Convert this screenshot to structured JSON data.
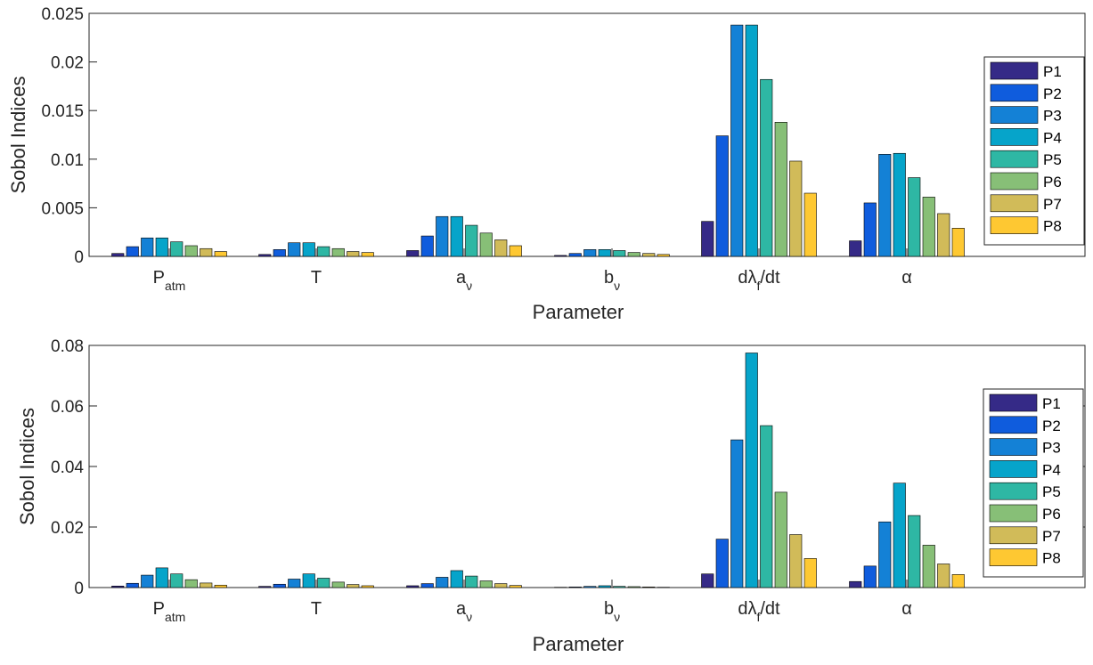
{
  "series_colors": [
    "#352a87",
    "#0f5cdd",
    "#1481d6",
    "#06a4ca",
    "#2eb7a4",
    "#87bf77",
    "#d1bb59",
    "#fec832",
    "#f9fb0e"
  ],
  "chart_data": [
    {
      "type": "bar",
      "title": "",
      "xlabel": "Parameter",
      "ylabel": "Sobol Indices",
      "ylim": [
        0,
        0.025
      ],
      "yticks": [
        0,
        0.005,
        0.01,
        0.015,
        0.02,
        0.025
      ],
      "ytick_labels": [
        "0",
        "0.005",
        "0.01",
        "0.015",
        "0.02",
        "0.025"
      ],
      "categories": [
        {
          "base": "P",
          "sub": "atm",
          "full": "P_atm"
        },
        {
          "base": "T",
          "sub": "",
          "full": "T"
        },
        {
          "base": "a",
          "sub": "ν",
          "full": "a_ν"
        },
        {
          "base": "b",
          "sub": "ν",
          "full": "b_ν"
        },
        {
          "base": "dλ",
          "sub": "f",
          "tail": "/dt",
          "full": "dλ_f/dt"
        },
        {
          "base": "α",
          "sub": "",
          "full": "α"
        }
      ],
      "legend": "right",
      "series": [
        {
          "name": "P1",
          "values": [
            0.0003,
            0.0002,
            0.0006,
            0.0001,
            0.0036,
            0.0016
          ]
        },
        {
          "name": "P2",
          "values": [
            0.001,
            0.0007,
            0.0021,
            0.0003,
            0.0124,
            0.0055
          ]
        },
        {
          "name": "P3",
          "values": [
            0.0019,
            0.0014,
            0.0041,
            0.0007,
            0.0238,
            0.0105
          ]
        },
        {
          "name": "P4",
          "values": [
            0.0019,
            0.0014,
            0.0041,
            0.0007,
            0.0238,
            0.0106
          ]
        },
        {
          "name": "P5",
          "values": [
            0.0015,
            0.001,
            0.0032,
            0.0006,
            0.0182,
            0.0081
          ]
        },
        {
          "name": "P6",
          "values": [
            0.0011,
            0.0008,
            0.0024,
            0.0004,
            0.0138,
            0.0061
          ]
        },
        {
          "name": "P7",
          "values": [
            0.0008,
            0.0005,
            0.0017,
            0.0003,
            0.0098,
            0.0044
          ]
        },
        {
          "name": "P8",
          "values": [
            0.0005,
            0.0004,
            0.0011,
            0.0002,
            0.0065,
            0.0029
          ]
        }
      ]
    },
    {
      "type": "bar",
      "title": "",
      "xlabel": "Parameter",
      "ylabel": "Sobol Indices",
      "ylim": [
        0,
        0.08
      ],
      "yticks": [
        0,
        0.02,
        0.04,
        0.06,
        0.08
      ],
      "ytick_labels": [
        "0",
        "0.02",
        "0.04",
        "0.06",
        "0.08"
      ],
      "categories": [
        {
          "base": "P",
          "sub": "atm",
          "full": "P_atm"
        },
        {
          "base": "T",
          "sub": "",
          "full": "T"
        },
        {
          "base": "a",
          "sub": "ν",
          "full": "a_ν"
        },
        {
          "base": "b",
          "sub": "ν",
          "full": "b_ν"
        },
        {
          "base": "dλ",
          "sub": "f",
          "tail": "/dt",
          "full": "dλ_f/dt"
        },
        {
          "base": "α",
          "sub": "",
          "full": "α"
        }
      ],
      "legend": "right",
      "series": [
        {
          "name": "P1",
          "values": [
            0.0005,
            0.0004,
            0.0006,
            0.0001,
            0.0045,
            0.002
          ]
        },
        {
          "name": "P2",
          "values": [
            0.0014,
            0.0011,
            0.0013,
            0.0002,
            0.016,
            0.0071
          ]
        },
        {
          "name": "P3",
          "values": [
            0.0041,
            0.0028,
            0.0034,
            0.0004,
            0.0488,
            0.0217
          ]
        },
        {
          "name": "P4",
          "values": [
            0.0065,
            0.0045,
            0.0056,
            0.0006,
            0.0775,
            0.0345
          ]
        },
        {
          "name": "P5",
          "values": [
            0.0045,
            0.0031,
            0.0038,
            0.0004,
            0.0535,
            0.0238
          ]
        },
        {
          "name": "P6",
          "values": [
            0.0026,
            0.0018,
            0.0022,
            0.0003,
            0.0315,
            0.014
          ]
        },
        {
          "name": "P7",
          "values": [
            0.0015,
            0.001,
            0.0013,
            0.0002,
            0.0175,
            0.0078
          ]
        },
        {
          "name": "P8",
          "values": [
            0.0008,
            0.0006,
            0.0007,
            0.0001,
            0.0096,
            0.0043
          ]
        }
      ]
    }
  ]
}
